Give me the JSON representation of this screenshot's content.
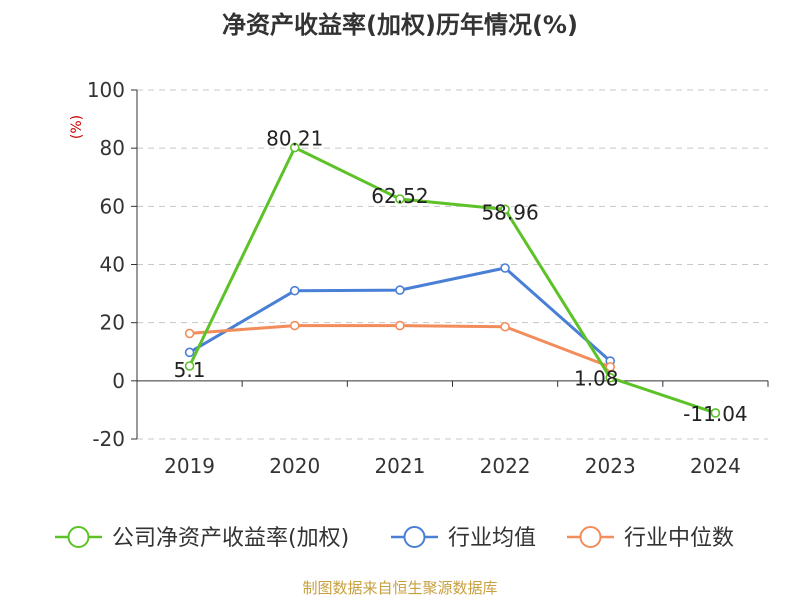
{
  "chart_data": {
    "type": "line",
    "title": "净资产收益率(加权)历年情况(%)",
    "ylabel": "(%)",
    "ylim": [
      -20,
      100
    ],
    "yticks": [
      -20,
      0,
      20,
      40,
      60,
      80,
      100
    ],
    "categories": [
      "2019",
      "2020",
      "2021",
      "2022",
      "2023",
      "2024"
    ],
    "series": [
      {
        "name": "公司净资产收益率(加权)",
        "color": "#5cc227",
        "values": [
          5.1,
          80.21,
          62.52,
          58.96,
          1.08,
          -11.04
        ],
        "labels": [
          "5.1",
          "80.21",
          "62.52",
          "58.96",
          "1.08",
          "-11.04"
        ]
      },
      {
        "name": "行业均值",
        "color": "#4a7fd6",
        "values": [
          9.8,
          31.0,
          31.2,
          38.8,
          6.8,
          null
        ]
      },
      {
        "name": "行业中位数",
        "color": "#f28c5a",
        "values": [
          16.3,
          19.0,
          19.0,
          18.6,
          4.8,
          null
        ]
      }
    ],
    "grid": true,
    "legend": "bottom"
  },
  "footer": {
    "source": "制图数据来自恒生聚源数据库"
  },
  "colors": {
    "title": "#333333",
    "ylabel": "#cc0000",
    "footer": "#c8a040",
    "axis": "#333333",
    "grid": "#c8c8c8"
  }
}
